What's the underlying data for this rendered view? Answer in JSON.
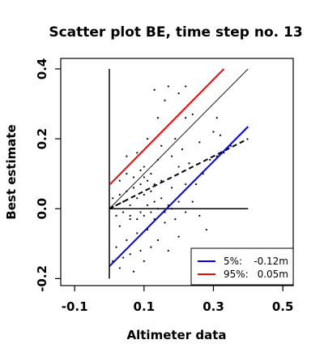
{
  "chart_data": {
    "type": "scatter",
    "title": "Scatter plot BE, time step no. 13",
    "xlabel": "Altimeter data",
    "ylabel": "Best estimate",
    "xlim": [
      -0.14,
      0.53
    ],
    "ylim": [
      -0.22,
      0.43
    ],
    "x_ticks": [
      -0.1,
      0.1,
      0.3,
      0.5
    ],
    "x_tick_labels": [
      "-0.1",
      "0.1",
      "0.3",
      "0.5"
    ],
    "y_ticks": [
      -0.2,
      0.0,
      0.2,
      0.4
    ],
    "y_tick_labels": [
      "-0.2",
      "0.0",
      "0.2",
      "0.4"
    ],
    "grid": false,
    "legend_position": "bottom-right",
    "reference_lines": {
      "x0_vertical": {
        "x": 0.0,
        "y_range": [
          -0.2,
          0.4
        ],
        "color": "#000000"
      },
      "y0_horizontal": {
        "y": 0.0,
        "x_range": [
          0.0,
          0.4
        ],
        "color": "#000000"
      },
      "identity": {
        "x": [
          0.0,
          0.4
        ],
        "y": [
          0.0,
          0.4
        ],
        "color": "#000000"
      }
    },
    "fit_line": {
      "x": [
        0.0,
        0.4
      ],
      "y": [
        0.0,
        0.2
      ],
      "color": "#000000",
      "dash": true
    },
    "series": [
      {
        "name": "5%: -0.12m",
        "label": "5%:",
        "value": "-0.12m",
        "color": "#0000ff",
        "x": [
          0.0,
          0.4
        ],
        "y": [
          -0.165,
          0.235
        ]
      },
      {
        "name": "95%: 0.05m",
        "label": "95%:",
        "value": "0.05m",
        "color": "#ff0000",
        "x": [
          0.0,
          0.33
        ],
        "y": [
          0.068,
          0.4
        ]
      }
    ],
    "points": [
      [
        0.13,
        0.34
      ],
      [
        0.17,
        0.35
      ],
      [
        0.2,
        0.33
      ],
      [
        0.22,
        0.35
      ],
      [
        0.16,
        0.31
      ],
      [
        0.24,
        0.27
      ],
      [
        0.22,
        0.26
      ],
      [
        0.14,
        0.26
      ],
      [
        0.3,
        0.22
      ],
      [
        0.31,
        0.26
      ],
      [
        0.32,
        0.21
      ],
      [
        0.26,
        0.19
      ],
      [
        0.31,
        0.15
      ],
      [
        0.33,
        0.16
      ],
      [
        0.09,
        0.11
      ],
      [
        0.14,
        0.14
      ],
      [
        0.18,
        0.15
      ],
      [
        0.2,
        0.12
      ],
      [
        0.05,
        0.15
      ],
      [
        0.08,
        0.16
      ],
      [
        0.1,
        0.12
      ],
      [
        0.12,
        0.1
      ],
      [
        0.15,
        0.08
      ],
      [
        0.18,
        0.06
      ],
      [
        0.22,
        0.07
      ],
      [
        0.25,
        0.07
      ],
      [
        0.29,
        0.14
      ],
      [
        0.24,
        0.02
      ],
      [
        0.26,
        -0.02
      ],
      [
        0.22,
        -0.01
      ],
      [
        0.19,
        -0.03
      ],
      [
        0.16,
        -0.04
      ],
      [
        0.13,
        -0.03
      ],
      [
        0.11,
        -0.06
      ],
      [
        0.08,
        -0.07
      ],
      [
        0.05,
        -0.09
      ],
      [
        0.02,
        -0.11
      ],
      [
        0.04,
        -0.14
      ],
      [
        0.06,
        -0.13
      ],
      [
        0.09,
        -0.12
      ],
      [
        0.12,
        -0.11
      ],
      [
        0.14,
        -0.09
      ],
      [
        0.2,
        -0.08
      ],
      [
        0.07,
        -0.18
      ],
      [
        0.03,
        -0.17
      ],
      [
        0.01,
        -0.15
      ],
      [
        0.03,
        -0.05
      ],
      [
        0.06,
        -0.03
      ],
      [
        0.09,
        -0.01
      ],
      [
        0.11,
        0.01
      ],
      [
        0.13,
        0.02
      ],
      [
        0.15,
        0.03
      ],
      [
        0.17,
        0.01
      ],
      [
        0.2,
        0.02
      ],
      [
        0.02,
        0.01
      ],
      [
        0.04,
        0.02
      ],
      [
        0.06,
        0.01
      ],
      [
        0.08,
        0.03
      ],
      [
        0.1,
        0.04
      ],
      [
        0.12,
        0.05
      ],
      [
        0.05,
        0.05
      ],
      [
        0.07,
        0.06
      ],
      [
        0.09,
        0.07
      ],
      [
        0.11,
        0.08
      ],
      [
        0.13,
        0.07
      ],
      [
        0.03,
        0.04
      ],
      [
        0.01,
        0.03
      ],
      [
        0.02,
        -0.02
      ],
      [
        0.04,
        -0.01
      ],
      [
        0.06,
        -0.02
      ],
      [
        0.08,
        -0.03
      ],
      [
        0.1,
        -0.02
      ],
      [
        0.12,
        -0.01
      ],
      [
        0.14,
        0.0
      ],
      [
        0.16,
        -0.01
      ],
      [
        0.18,
        0.0
      ],
      [
        0.03,
        0.08
      ],
      [
        0.05,
        0.1
      ],
      [
        0.07,
        0.09
      ],
      [
        0.1,
        0.09
      ],
      [
        0.21,
        0.17
      ],
      [
        0.23,
        0.13
      ],
      [
        0.19,
        0.2
      ],
      [
        0.15,
        0.18
      ],
      [
        0.11,
        0.2
      ],
      [
        0.27,
        0.1
      ],
      [
        0.35,
        0.18
      ],
      [
        0.28,
        -0.06
      ],
      [
        0.17,
        -0.12
      ],
      [
        0.1,
        -0.15
      ]
    ]
  }
}
